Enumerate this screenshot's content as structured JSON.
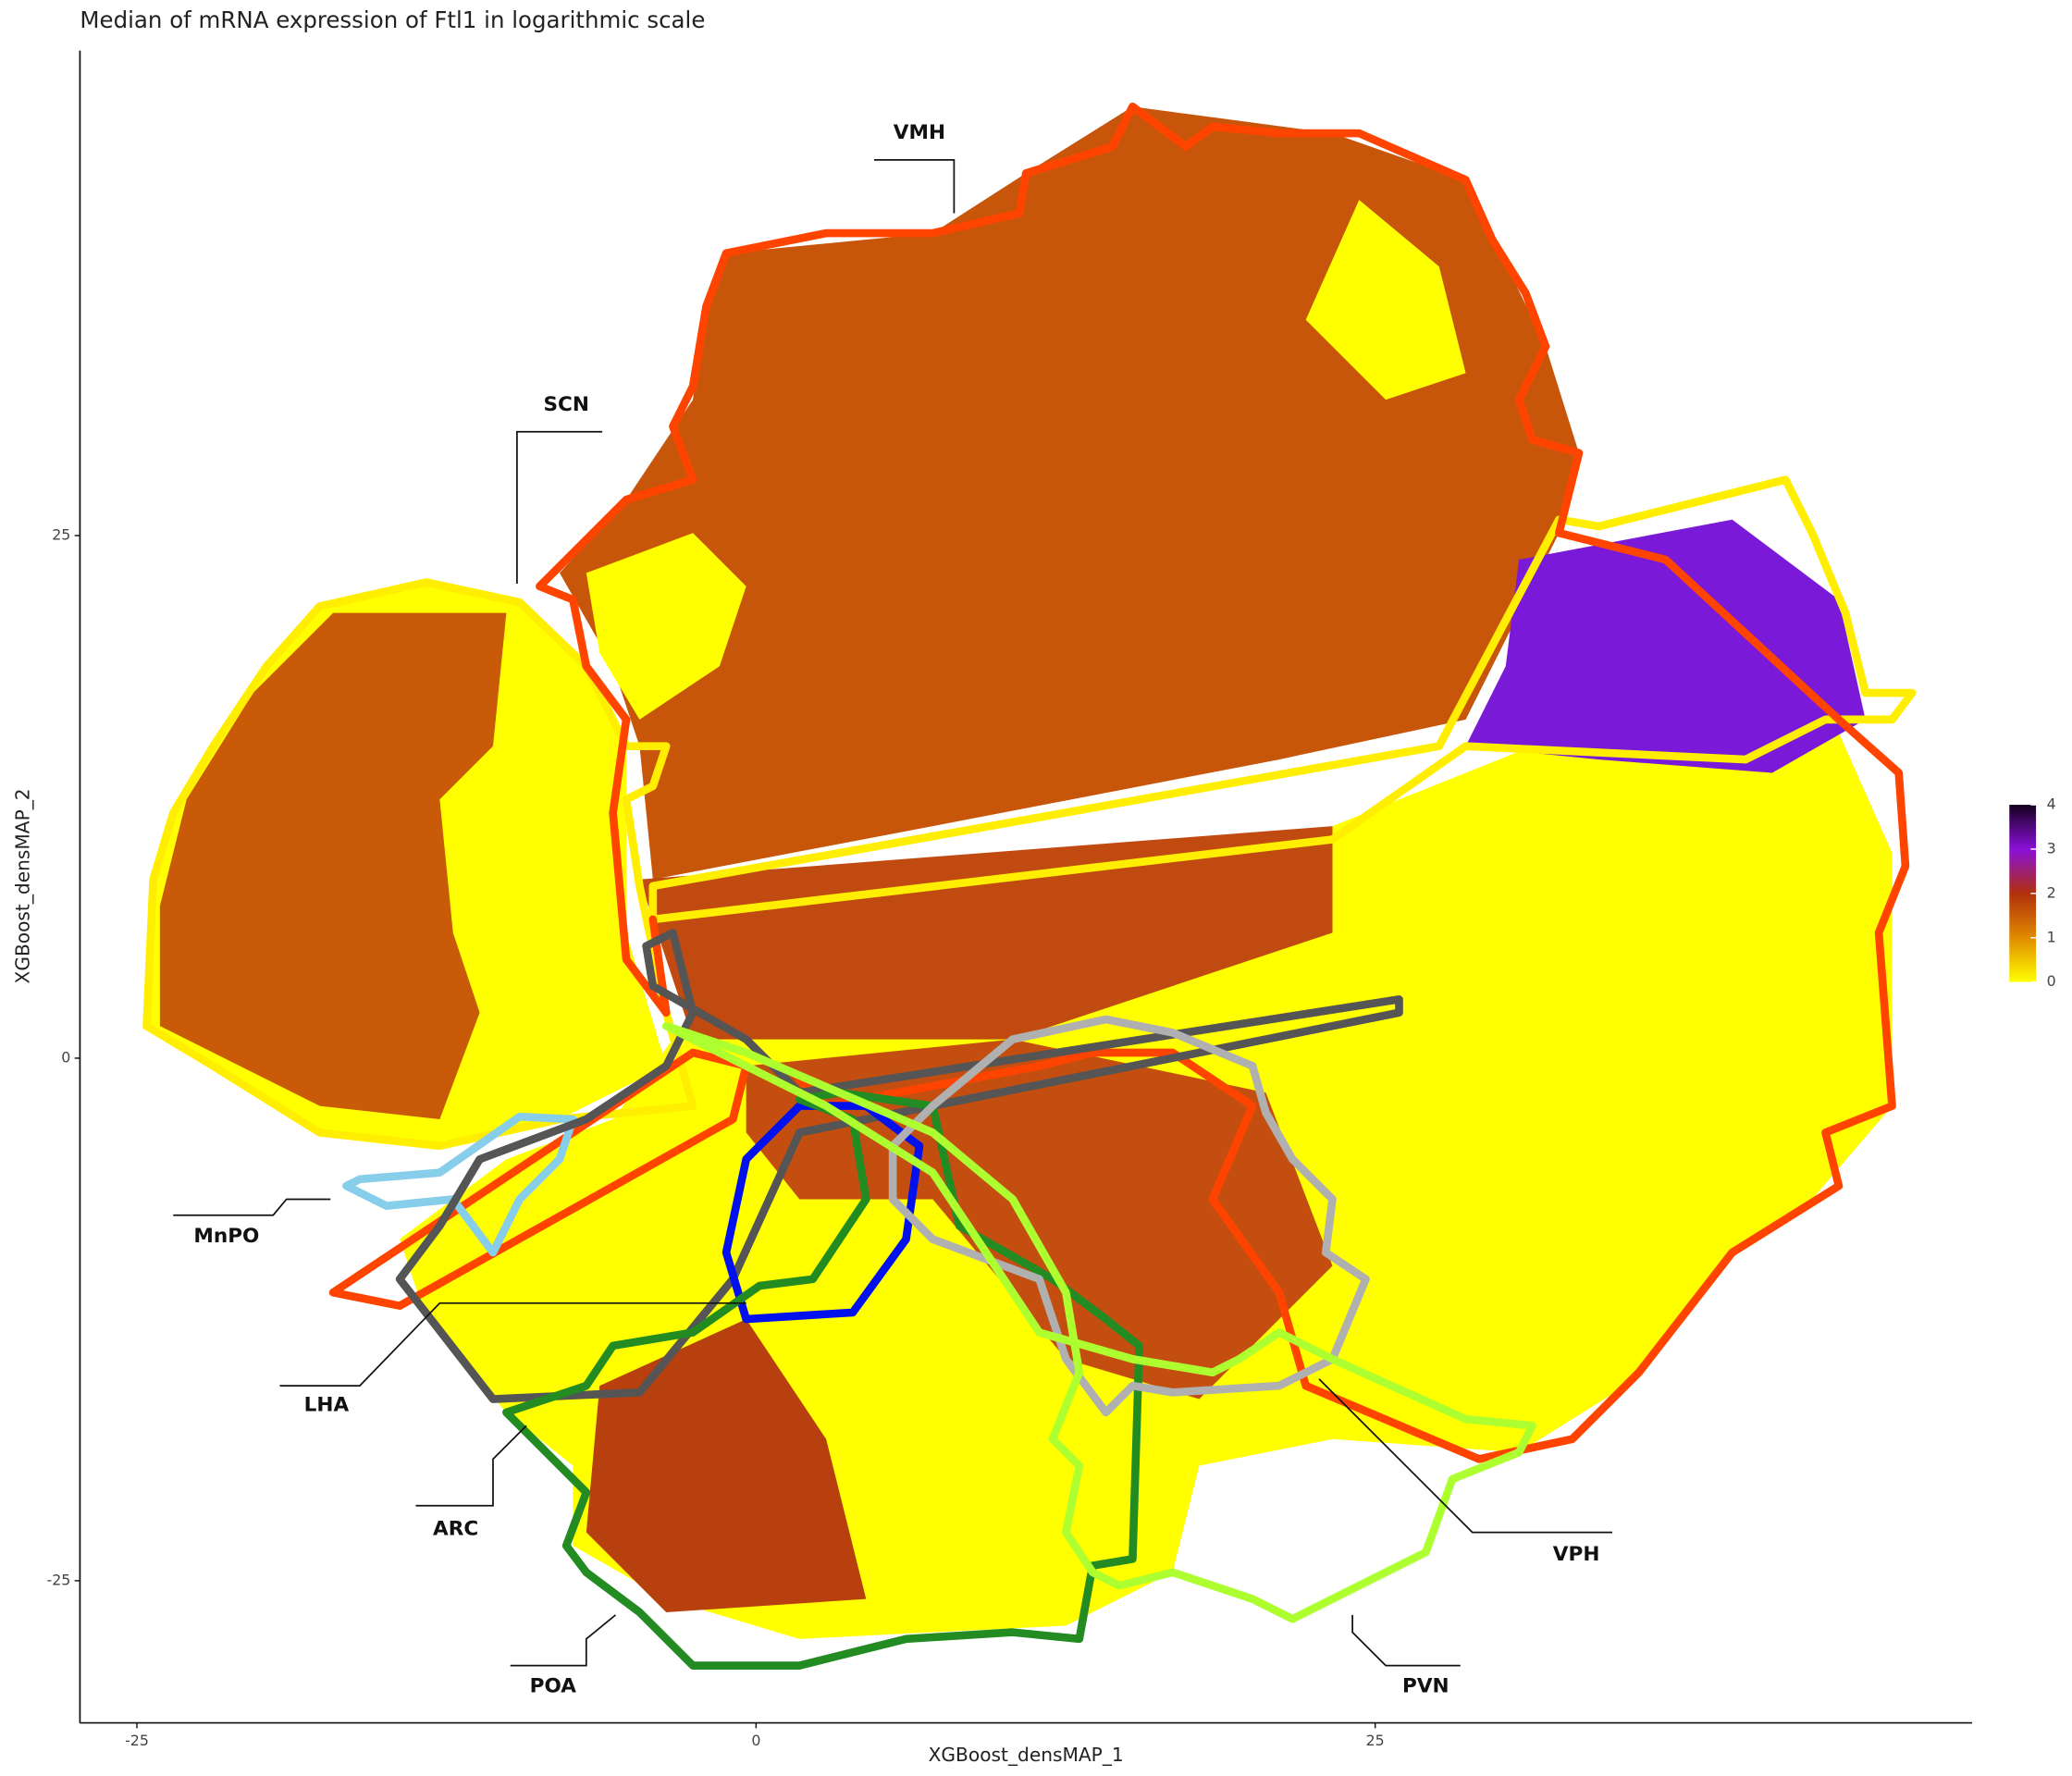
{
  "chart_data": {
    "type": "hexbin",
    "title": "Median of mRNA expression of Ftl1 in logarithmic scale",
    "x_label": "XGBoost_densMAP_1",
    "y_label": "XGBoost_densMAP_2",
    "xlim": [
      -27.3,
      49.1
    ],
    "ylim": [
      -31.8,
      48.2
    ],
    "xticks": [
      -25,
      0,
      25
    ],
    "yticks": [
      -25,
      0,
      25
    ],
    "colorlim": [
      0,
      4
    ],
    "colorticks": [
      0,
      1,
      2,
      3,
      4
    ],
    "colorscale": [
      "#ffff00",
      "#e08a00",
      "#b0300c",
      "#8a10d8",
      "#14001e"
    ],
    "annotations": [
      "VMH",
      "SCN",
      "MnPO",
      "LHA",
      "ARC",
      "POA",
      "VPH",
      "PVN"
    ]
  }
}
